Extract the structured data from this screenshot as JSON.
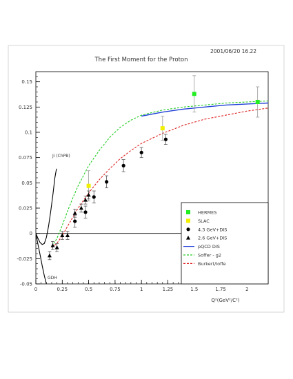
{
  "chart_data": {
    "type": "scatter",
    "title": "The First Moment for the Proton",
    "timestamp": "2001/06/20   16.22",
    "xlabel": "Q²(GeV²/C²)",
    "ylabel": "",
    "xlim": [
      0,
      2.2
    ],
    "ylim": [
      -0.05,
      0.16
    ],
    "x_ticks": [
      "0",
      "0.25",
      "0.5",
      "0.75",
      "1",
      "1.25",
      "1.5",
      "1.75",
      "2"
    ],
    "x_tick_values": [
      0,
      0.25,
      0.5,
      0.75,
      1,
      1.25,
      1.5,
      1.75,
      2
    ],
    "y_ticks": [
      "-0.05",
      "-0.025",
      "0",
      "0.025",
      "0.05",
      "0.075",
      "0.1",
      "0.125",
      "0.15"
    ],
    "y_tick_values": [
      -0.05,
      -0.025,
      0,
      0.025,
      0.05,
      0.075,
      0.1,
      0.125,
      0.15
    ],
    "legend_position": "bottom-right",
    "annotations": [
      {
        "text": "Ji (ChPB)",
        "x": 0.16,
        "y": 0.07
      },
      {
        "text": "GDH",
        "x": 0.12,
        "y": -0.046
      }
    ],
    "series": [
      {
        "name": "HERMES",
        "marker": "square",
        "color": "#22ee22",
        "points": [
          {
            "x": 1.5,
            "y": 0.138,
            "err": 0.018
          },
          {
            "x": 2.1,
            "y": 0.13,
            "err": 0.015
          }
        ]
      },
      {
        "name": "SLAC",
        "marker": "square",
        "color": "#f0f000",
        "points": [
          {
            "x": 0.5,
            "y": 0.047,
            "err": 0.015
          },
          {
            "x": 1.2,
            "y": 0.104,
            "err": 0.012
          }
        ]
      },
      {
        "name": "4.3 GeV+DIS",
        "marker": "circle",
        "color": "#000000",
        "points": [
          {
            "x": 0.37,
            "y": 0.012,
            "err": 0.006
          },
          {
            "x": 0.47,
            "y": 0.021,
            "err": 0.006
          },
          {
            "x": 0.55,
            "y": 0.036,
            "err": 0.006
          },
          {
            "x": 0.67,
            "y": 0.051,
            "err": 0.006
          },
          {
            "x": 0.83,
            "y": 0.067,
            "err": 0.006
          },
          {
            "x": 1.0,
            "y": 0.08,
            "err": 0.005
          },
          {
            "x": 1.23,
            "y": 0.093,
            "err": 0.005
          }
        ]
      },
      {
        "name": "2.6 GeV+DIS",
        "marker": "triangle",
        "color": "#000000",
        "points": [
          {
            "x": 0.13,
            "y": -0.022,
            "err": 0.004
          },
          {
            "x": 0.16,
            "y": -0.012,
            "err": 0.004
          },
          {
            "x": 0.2,
            "y": -0.014,
            "err": 0.004
          },
          {
            "x": 0.25,
            "y": -0.002,
            "err": 0.004
          },
          {
            "x": 0.3,
            "y": -0.002,
            "err": 0.004
          },
          {
            "x": 0.37,
            "y": 0.02,
            "err": 0.004
          },
          {
            "x": 0.43,
            "y": 0.025,
            "err": 0.004
          },
          {
            "x": 0.47,
            "y": 0.033,
            "err": 0.004
          },
          {
            "x": 0.5,
            "y": 0.038,
            "err": 0.004
          }
        ]
      },
      {
        "name": "pQCD DIS",
        "type": "line",
        "style": "solid",
        "color": "#1f3fd8",
        "points": [
          [
            1.0,
            0.116
          ],
          [
            1.2,
            0.12
          ],
          [
            1.4,
            0.123
          ],
          [
            1.6,
            0.125
          ],
          [
            1.8,
            0.127
          ],
          [
            2.0,
            0.128
          ],
          [
            2.2,
            0.129
          ]
        ]
      },
      {
        "name": "Soffer - g2",
        "type": "line",
        "style": "dashed",
        "color": "#22cc22",
        "points": [
          [
            0.15,
            -0.013
          ],
          [
            0.2,
            -0.005
          ],
          [
            0.25,
            0.008
          ],
          [
            0.3,
            0.022
          ],
          [
            0.35,
            0.035
          ],
          [
            0.4,
            0.047
          ],
          [
            0.5,
            0.067
          ],
          [
            0.6,
            0.082
          ],
          [
            0.7,
            0.095
          ],
          [
            0.8,
            0.105
          ],
          [
            0.9,
            0.112
          ],
          [
            1.0,
            0.117
          ],
          [
            1.2,
            0.122
          ],
          [
            1.4,
            0.125
          ],
          [
            1.6,
            0.127
          ],
          [
            1.8,
            0.129
          ],
          [
            2.0,
            0.13
          ],
          [
            2.2,
            0.131
          ]
        ]
      },
      {
        "name": "Burkert/Ioffe",
        "type": "line",
        "style": "dashed",
        "color": "#dd2222",
        "points": [
          [
            0.15,
            -0.014
          ],
          [
            0.2,
            -0.01
          ],
          [
            0.25,
            -0.002
          ],
          [
            0.3,
            0.007
          ],
          [
            0.35,
            0.016
          ],
          [
            0.4,
            0.025
          ],
          [
            0.5,
            0.04
          ],
          [
            0.6,
            0.053
          ],
          [
            0.7,
            0.064
          ],
          [
            0.8,
            0.074
          ],
          [
            0.9,
            0.082
          ],
          [
            1.0,
            0.089
          ],
          [
            1.2,
            0.099
          ],
          [
            1.4,
            0.107
          ],
          [
            1.6,
            0.113
          ],
          [
            1.8,
            0.117
          ],
          [
            2.0,
            0.121
          ],
          [
            2.2,
            0.124
          ]
        ]
      },
      {
        "name": "Ji (ChPB)",
        "type": "line",
        "style": "solid",
        "color": "#000000",
        "points": [
          [
            0.0,
            0.0
          ],
          [
            0.02,
            -0.005
          ],
          [
            0.04,
            -0.009
          ],
          [
            0.06,
            -0.011
          ],
          [
            0.08,
            -0.01
          ],
          [
            0.1,
            -0.004
          ],
          [
            0.12,
            0.007
          ],
          [
            0.14,
            0.021
          ],
          [
            0.16,
            0.037
          ],
          [
            0.18,
            0.055
          ],
          [
            0.195,
            0.064
          ]
        ]
      },
      {
        "name": "GDH",
        "type": "line",
        "style": "solid",
        "color": "#000000",
        "points": [
          [
            0.0,
            0.0
          ],
          [
            0.02,
            -0.011
          ],
          [
            0.04,
            -0.021
          ],
          [
            0.06,
            -0.032
          ],
          [
            0.08,
            -0.042
          ],
          [
            0.1,
            -0.05
          ]
        ]
      }
    ]
  }
}
